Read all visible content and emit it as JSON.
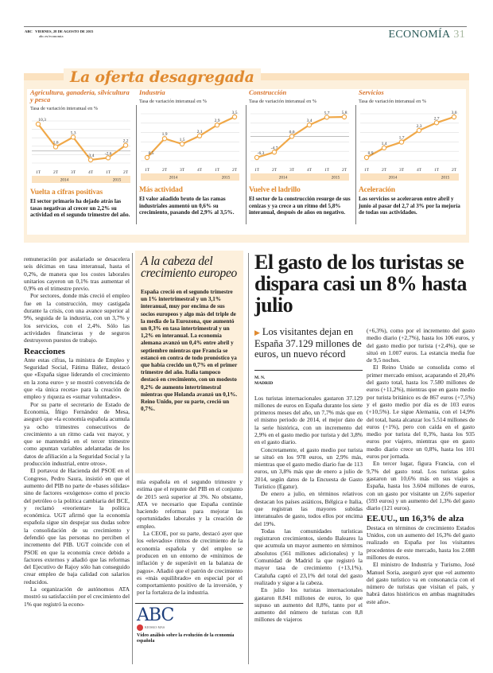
{
  "header": {
    "brand": "ABC",
    "date": "VIERNES, 28 DE AGOSTO DE 2015",
    "url": "abc.es/economia",
    "section": "ECONOMÍA",
    "page": "31"
  },
  "graphic": {
    "title": "La oferta desagregada",
    "colors": {
      "line": "#f0a848",
      "title": "#e08a30",
      "background": "#fdf0dc",
      "year_band": "#fbe2c0"
    },
    "panels": [
      {
        "title": "Agricultura, ganadería, silvicultura y pesca",
        "subtitle": "Tasa de variación interanual en %",
        "head": "Vuelta a cifras positivas",
        "text": "El sector primario ha dejado atrás las tasas negativas al crecer un 2,2% su actividad en el segundo trimestre del año."
      },
      {
        "title": "Industria",
        "subtitle": "Tasa de variación interanual en %",
        "head": "Más actividad",
        "text": "El valor añadido bruto de las ramas industriales aumentó un 0,6% su crecimiento, pasando del 2,9% al 3,5%."
      },
      {
        "title": "Construcción",
        "subtitle": "Tasa de variación interanual en %",
        "head": "Vuelve el ladrillo",
        "text": "El sector de la construcción resurge de sus cenizas y ya crece a un ritmo del 5,8% interanual, después de años en negativo."
      },
      {
        "title": "Servicios",
        "subtitle": "Tasa de variación interanual en %",
        "head": "Aceleración",
        "text": "Los servicios se aceleraron entre abril y junio al pasar del 2,7 al 3% por la mejoría de todas sus actividades."
      }
    ]
  },
  "chart_data": [
    {
      "type": "line",
      "title": "Agricultura, ganadería, silvicultura y pesca",
      "ylabel": "Tasa de variación interanual en %",
      "categories": [
        "1T",
        "2T",
        "3T",
        "4T",
        "1T",
        "2T"
      ],
      "years": [
        "2014",
        "2015"
      ],
      "values": [
        10.3,
        1.6,
        5.3,
        -3.4,
        -2.6,
        2.2
      ],
      "labels": [
        "10,3",
        "1,6",
        "5,3",
        "-3,4",
        "-2,6",
        "2,2"
      ],
      "grid": true
    },
    {
      "type": "line",
      "title": "Industria",
      "ylabel": "Tasa de variación interanual en %",
      "categories": [
        "1T",
        "2T",
        "3T",
        "4T",
        "1T",
        "2T"
      ],
      "years": [
        "2014",
        "2015"
      ],
      "values": [
        0.5,
        1.9,
        1.5,
        2.1,
        2.9,
        3.5
      ],
      "labels": [
        "0,5",
        "1,9",
        "1,5",
        "2,1",
        "2,9",
        "3,5"
      ],
      "grid": true
    },
    {
      "type": "line",
      "title": "Construcción",
      "ylabel": "Tasa de variación interanual en %",
      "categories": [
        "1T",
        "2T",
        "3T",
        "4T",
        "1T",
        "2T"
      ],
      "years": [
        "2014",
        "2015"
      ],
      "values": [
        -6.3,
        -4.7,
        0.0,
        3.4,
        5.7,
        5.8
      ],
      "labels": [
        "-6,3",
        "-4,7",
        "0,0",
        "3,4",
        "5,7",
        "5,8"
      ],
      "grid": true
    },
    {
      "type": "line",
      "title": "Servicios",
      "ylabel": "Tasa de variación interanual en %",
      "categories": [
        "1T",
        "2T",
        "3T",
        "4T",
        "1T",
        "2T"
      ],
      "years": [
        "2014",
        "2015"
      ],
      "values": [
        0.9,
        1.4,
        1.7,
        2.3,
        2.7,
        3.0
      ],
      "labels": [
        "0,9",
        "1,4",
        "1,7",
        "2,3",
        "2,7",
        "3,0"
      ],
      "grid": true
    }
  ],
  "col1": {
    "paragraphs": [
      "remuneración por asalariado se desacelera seis décimas en tasa interanual, hasta el 0,2%, de manera que los costes laborales unitarios cayeron un 0,1% tras aumentar el 0,9% en el trimestre previo.",
      "Por sectores, donde más creció el empleo fue en la construcción, muy castigada durante la crisis, con una avance superior al 9%, seguida de la industria, con un 3,7% y los servicios, con el 2,4%. Sólo las actividades financieras y de seguros destruyeron puestos de trabajo."
    ],
    "subhead": "Reacciones",
    "paragraphs2": [
      "Ante estas cifras, la ministra de Empleo y Seguridad Social, Fátima Báñez, destacó que «España sigue liderando el crecimiento en la zona euro» y se mostró convencida de que «la única receta» para la creación de empleo y riqueza es «sumar voluntades».",
      "Por su parte el secretario de Estado de Economía, Íñigo Fernández de Mesa, aseguró que «la economía española acumula ya ocho trimestres consecutivos de crecimiento a un ritmo cada vez mayor, y que se mantendrá en el tercer trimestre como apuntan variables adelantadas de los datos de afiliación a la Seguridad Social y la producción industrial, entre otros».",
      "El portavoz de Hacienda del PSOE en el Congreso, Pedro Saura, insistió en que el aumento del PIB no parte de «bases sólidas» sino de factores «exógenos» como el precio del petróleo o la política cambiaria del BCE, y reclamó «reorientar» la política económica. UGT afirmó que la economía española sigue sin despejar sus dudas sobre la consolidación de su crecimiento y defendió que las personas no perciben el incremento del PIB. UGT coincide con el PSOE en que la economía crece debido a factores externos y añadió que las reformas del Ejecutivo de Rajoy sólo han conseguido crear empleo de baja calidad con salarios reducidos.",
      "La organización de autónomos ATA mostró su satisfacción por el crecimiento del 1% que registró la econo-"
    ]
  },
  "sidebar": {
    "title": "A la cabeza del crecimiento europeo",
    "body": "España creció en el segundo trimestre un 1% intertrimestral y un 3,1% interanual, muy por encima de sus socios europeos y algo más del triple de la media de la Eurozona, que aumentó un 0,3% en tasa intertrimestral y un 1,2% en interanual. La economía alemana avanzó un 0,4% entre abril y septiembre mientras que Francia se estancó en contra de todo pronóstico ya que había crecido un 0,7% en el primer trimestre del año. Italia tampoco destacó en crecimiento, con un modesto 0,2% de aumento intertrimestral mientras que Holanda avanzó un 0,1%. Reino Unido, por su parte, creció un 0,7%."
  },
  "col2": {
    "paragraphs": [
      "mía española en el segundo trimestre y estima que el repunte del PIB en el conjunto de 2015 será superior al 3%. No obstante, ATA ve necesario que España continúe haciendo reformas para mejorar las oportunidades laborales y la creación de empleo.",
      "La CEOE, por su parte, destacó ayer que los «elevados» ritmos de crecimiento de la economía española y del empleo se producen en un entorno de «mínimos de inflación y de superávit en la balanza de pagos». Añadió que el patrón de crecimiento es «más equilibrado» en especial por el comportamiento positivo de la inversión, y por la fortaleza de la industria."
    ]
  },
  "video": {
    "logo": "ABC",
    "badge": "KIOSKO·MAS",
    "caption": "Vídeo análisis sobre la evolución de la economía española"
  },
  "article": {
    "headline": "El gasto de los turistas se dispara casi un 8% hasta julio",
    "deck": "Los visitantes dejan en España 37.129 millones de euros, un nuevo récord",
    "author": "M. N.",
    "location": "MADRID",
    "col3": [
      "Los turistas internacionales gastaron 37.129 millones de euros en España durante los siete primeros meses del año, un 7,7% más que en el mismo periodo de 2014, el mejor dato de la serie histórica, con un incremento del 2,9% en el gasto medio por turista y del 3,8% en el gasto diario.",
      "Concretamente, el gasto medio por turista se situó en los 978 euros, un 2,9% más, mientras que el gasto medio diario fue de 113 euros, un 3,8% más que de enero a julio de 2014, según datos de la Encuesta de Gasto Turístico (Egatur).",
      "De enero a julio, en términos relativos destacan los países asiáticos, Bélgica e Italia, que registran las mayores subidas interanuales de gasto, todos ellos por encima del 19%.",
      "Todas las comunidades turísticas registraron crecimientos, siendo Baleares la que acumula un mayor aumento en términos absolutos (561 millones adicionales) y la Comunidad de Madrid la que registró la mayor tasa de crecimiento (+13,1%). Cataluña captó el 23,1% del total del gasto realizado y sigue a la cabeza.",
      "En julio los turistas internacionales gastaron 8.841 millones de euros, lo que supuso un aumento del 8,8%, tanto por el aumento del número de turistas con 8,8 millones de viajeros"
    ],
    "col4": [
      "(+6,3%), como por el incremento del gasto medio diario (+2,7%), hasta los 106 euros, y del gasto medio por turista (+2,4%), que se situó en 1.007 euros. La estancia media fue de 9,5 noches.",
      "El Reino Unido se consolida como el primer mercado emisor, acaparando el 20,4% del gasto total, hasta los 7.580 millones de euros (+11,2%), mientras que en gasto medio por turista británico es de 867 euros (+7,5%) y el gasto medio por día es de 103 euros (+10,5%). Le sigue Alemania, con el 14,9% del total, hasta alcanzar los 5.514 millones de euros (+1%), pero con caída en el gasto medio por turista del 0,3%, hasta los 935 euros por viajero, mientras que en gasto medio diario crece un 0,8%, hasta los 101 euros por jornada.",
      "En tercer lugar, figura Francia, con el 9,7% del gasto total. Los turistas galos gastaron un 10,6% más en sus viajes a España, hasta los 3.604 millones de euros, con un gasto por visitante un 2,6% superior (593 euros) y un aumento del 1,3% del gasto diario (121 euros)."
    ],
    "subhead": "EE.UU., un 16,3% de alza",
    "col4b": [
      "Destaca en términos de crecimiento Estados Unidos, con un aumento del 16,3% del gasto realizado en España por los visitantes procedentes de este mercado, hasta los 2.088 millones de euros.",
      "El ministro de Industria y Turismo, José Manuel Soria, aseguró ayer que «el aumento del gasto turístico va en consonancia con el número de turistas que visitan el país, y habrá datos históricos en ambas magnitudes este año»."
    ]
  }
}
